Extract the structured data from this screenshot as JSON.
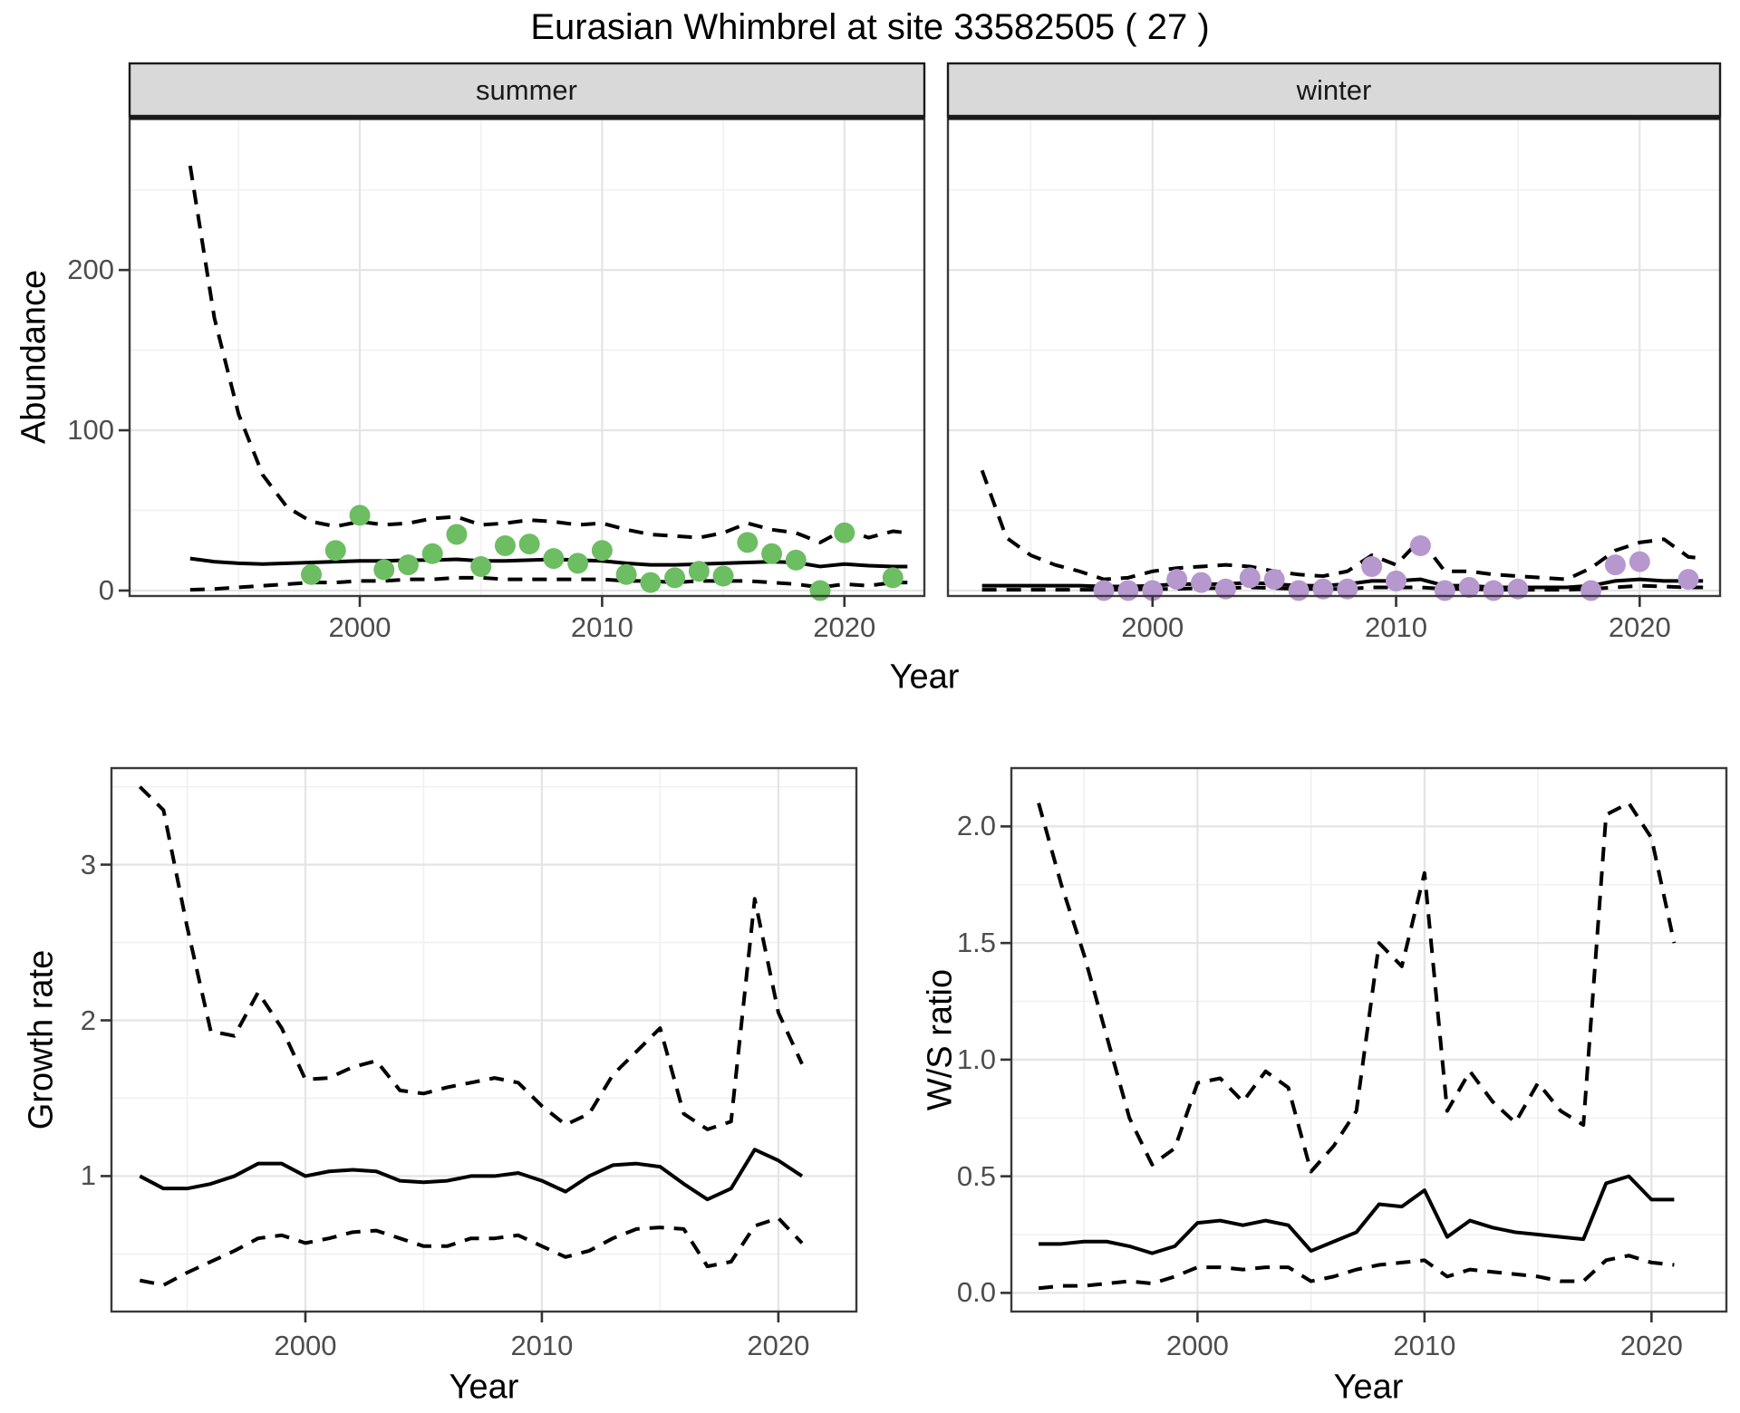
{
  "title": "Eurasian Whimbrel at site 33582505 ( 27 )",
  "top_row": {
    "ylabel": "Abundance",
    "xlabel": "Year",
    "facet_labels": [
      "summer",
      "winter"
    ]
  },
  "bottom_row": {
    "left_ylabel": "Growth rate",
    "left_xlabel": "Year",
    "right_ylabel": "W/S ratio",
    "right_xlabel": "Year"
  },
  "colors": {
    "summer_point": "#6dbd63",
    "winter_point": "#b697ce",
    "line": "#000000",
    "strip_bg": "#d9d9d9",
    "strip_border": "#1a1a1a",
    "panel_border": "#3a3a3a",
    "grid_major": "#e4e4e4",
    "grid_minor": "#f0f0f0",
    "tick_text": "#4d4d4d",
    "panel_bg": "#ffffff"
  },
  "chart_data": [
    {
      "id": "abundance_summer",
      "type": "scatter",
      "facet_label": "summer",
      "ylabel": "Abundance",
      "xlabel": "Year",
      "grid": true,
      "legend": "none",
      "xlim": [
        1990.5,
        2023.3
      ],
      "ylim": [
        -3.4,
        295
      ],
      "x_ticks": [
        2000,
        2010,
        2020
      ],
      "x_tick_labels": [
        "2000",
        "2010",
        "2020"
      ],
      "x_minor": [
        1995,
        2005,
        2015
      ],
      "y_ticks": [
        0,
        100,
        200
      ],
      "y_tick_labels": [
        "0",
        "100",
        "200"
      ],
      "y_minor": [
        50,
        150,
        250
      ],
      "line_x": [
        1993,
        1994,
        1995,
        1996,
        1997,
        1998,
        1999,
        2000,
        2001,
        2002,
        2003,
        2004,
        2005,
        2006,
        2007,
        2008,
        2009,
        2010,
        2011,
        2012,
        2013,
        2014,
        2015,
        2016,
        2017,
        2018,
        2019,
        2020,
        2021,
        2022,
        2022.6
      ],
      "series": [
        {
          "name": "median",
          "style": "solid",
          "values": [
            20,
            18,
            17,
            16.5,
            17,
            17.5,
            18,
            18.5,
            18.5,
            19,
            19,
            19.5,
            18.5,
            18.5,
            19,
            19.5,
            19,
            18.5,
            17,
            16,
            16,
            16.5,
            17,
            17.5,
            18,
            17.5,
            15,
            16.5,
            15.5,
            15,
            15
          ]
        },
        {
          "name": "upper95",
          "style": "dashed",
          "values": [
            265,
            170,
            110,
            72,
            52,
            43,
            40,
            43,
            41,
            42,
            45,
            46,
            41,
            42,
            44,
            43,
            41,
            42,
            38,
            35,
            34,
            33,
            36,
            42,
            38,
            36,
            30,
            38,
            33,
            37,
            36
          ]
        },
        {
          "name": "lower95",
          "style": "dashed",
          "values": [
            0.5,
            1,
            2,
            3,
            4,
            5,
            5,
            6,
            6,
            7,
            7,
            8,
            8,
            7,
            7,
            7,
            7,
            7,
            6,
            6,
            5,
            6,
            6,
            6,
            5,
            4,
            2,
            4,
            3,
            5,
            5
          ]
        }
      ],
      "points": [
        [
          1998,
          10
        ],
        [
          1999,
          25
        ],
        [
          2000,
          47
        ],
        [
          2001,
          13
        ],
        [
          2002,
          16
        ],
        [
          2003,
          23
        ],
        [
          2004,
          35
        ],
        [
          2005,
          15
        ],
        [
          2006,
          28
        ],
        [
          2007,
          29
        ],
        [
          2008,
          20
        ],
        [
          2009,
          17
        ],
        [
          2010,
          25
        ],
        [
          2011,
          10
        ],
        [
          2012,
          5
        ],
        [
          2013,
          8
        ],
        [
          2014,
          12
        ],
        [
          2015,
          9
        ],
        [
          2016,
          30
        ],
        [
          2017,
          23
        ],
        [
          2018,
          19
        ],
        [
          2019,
          0
        ],
        [
          2020,
          36
        ],
        [
          2022,
          8
        ]
      ],
      "point_color": "#6dbd63"
    },
    {
      "id": "abundance_winter",
      "type": "scatter",
      "facet_label": "winter",
      "ylabel": "Abundance",
      "xlabel": "Year",
      "grid": true,
      "legend": "none",
      "xlim": [
        1991.6,
        2023.3
      ],
      "ylim": [
        -3.4,
        295
      ],
      "x_ticks": [
        2000,
        2010,
        2020
      ],
      "x_tick_labels": [
        "2000",
        "2010",
        "2020"
      ],
      "x_minor": [
        1995,
        2005,
        2015
      ],
      "y_ticks": [
        0,
        100,
        200
      ],
      "y_tick_labels": [
        "0",
        "100",
        "200"
      ],
      "y_minor": [
        50,
        150,
        250
      ],
      "line_x": [
        1993,
        1994,
        1995,
        1996,
        1997,
        1998,
        1999,
        2000,
        2001,
        2002,
        2003,
        2004,
        2005,
        2006,
        2007,
        2008,
        2009,
        2010,
        2011,
        2012,
        2013,
        2014,
        2015,
        2016,
        2017,
        2018,
        2019,
        2020,
        2021,
        2022,
        2022.6
      ],
      "series": [
        {
          "name": "median",
          "style": "solid",
          "values": [
            3,
            3,
            3,
            3,
            3,
            2.5,
            2.5,
            3,
            4,
            4,
            4,
            5,
            4,
            3,
            3,
            4,
            6,
            6,
            7,
            3,
            3,
            2,
            2,
            2,
            2,
            3,
            6,
            7,
            6,
            6,
            6
          ]
        },
        {
          "name": "upper95",
          "style": "dashed",
          "values": [
            75,
            33,
            22,
            16,
            12,
            7,
            8,
            12,
            14,
            15,
            16,
            15,
            12,
            10,
            9,
            12,
            22,
            16,
            32,
            12,
            12,
            10,
            9,
            8,
            7,
            14,
            25,
            30,
            32,
            21,
            20
          ]
        },
        {
          "name": "lower95",
          "style": "dashed",
          "values": [
            0.5,
            0.5,
            0.5,
            0.5,
            0.5,
            0.5,
            0.5,
            1,
            1,
            1.5,
            1.5,
            2,
            1.5,
            1,
            1,
            1,
            2,
            2,
            2,
            1,
            1,
            0.5,
            0.5,
            0.5,
            0.5,
            1,
            2,
            3,
            2.5,
            2,
            2
          ]
        }
      ],
      "points": [
        [
          1998,
          0
        ],
        [
          1999,
          0
        ],
        [
          2000,
          0
        ],
        [
          2001,
          7
        ],
        [
          2002,
          5
        ],
        [
          2003,
          1
        ],
        [
          2004,
          8
        ],
        [
          2005,
          7
        ],
        [
          2006,
          0
        ],
        [
          2007,
          1
        ],
        [
          2008,
          1
        ],
        [
          2009,
          15
        ],
        [
          2010,
          6
        ],
        [
          2011,
          28
        ],
        [
          2012,
          0
        ],
        [
          2013,
          2
        ],
        [
          2014,
          0
        ],
        [
          2015,
          1
        ],
        [
          2018,
          0
        ],
        [
          2019,
          16
        ],
        [
          2020,
          18
        ],
        [
          2022,
          7
        ]
      ],
      "point_color": "#b697ce"
    },
    {
      "id": "growth_rate",
      "type": "line",
      "ylabel": "Growth rate",
      "xlabel": "Year",
      "grid": true,
      "legend": "none",
      "xlim": [
        1991.8,
        2023.3
      ],
      "ylim": [
        0.13,
        3.62
      ],
      "x_ticks": [
        2000,
        2010,
        2020
      ],
      "x_tick_labels": [
        "2000",
        "2010",
        "2020"
      ],
      "x_minor": [
        1995,
        2005,
        2015
      ],
      "y_ticks": [
        1,
        2,
        3
      ],
      "y_tick_labels": [
        "1",
        "2",
        "3"
      ],
      "y_minor": [
        0.5,
        1.5,
        2.5,
        3.5
      ],
      "line_x": [
        1993,
        1994,
        1995,
        1996,
        1997,
        1998,
        1999,
        2000,
        2001,
        2002,
        2003,
        2004,
        2005,
        2006,
        2007,
        2008,
        2009,
        2010,
        2011,
        2012,
        2013,
        2014,
        2015,
        2016,
        2017,
        2018,
        2019,
        2020,
        2021
      ],
      "series": [
        {
          "name": "median",
          "style": "solid",
          "values": [
            1.0,
            0.92,
            0.92,
            0.95,
            1.0,
            1.08,
            1.08,
            1.0,
            1.03,
            1.04,
            1.03,
            0.97,
            0.96,
            0.97,
            1.0,
            1.0,
            1.02,
            0.97,
            0.9,
            1.0,
            1.07,
            1.08,
            1.06,
            0.95,
            0.85,
            0.92,
            1.17,
            1.1,
            1.0
          ]
        },
        {
          "name": "upper95",
          "style": "dashed",
          "values": [
            3.5,
            3.35,
            2.6,
            1.93,
            1.9,
            2.18,
            1.95,
            1.62,
            1.63,
            1.7,
            1.74,
            1.55,
            1.53,
            1.57,
            1.6,
            1.63,
            1.6,
            1.45,
            1.33,
            1.4,
            1.65,
            1.8,
            1.95,
            1.4,
            1.3,
            1.35,
            2.78,
            2.05,
            1.72
          ]
        },
        {
          "name": "lower95",
          "style": "dashed",
          "values": [
            0.33,
            0.3,
            0.38,
            0.45,
            0.52,
            0.6,
            0.62,
            0.57,
            0.6,
            0.64,
            0.65,
            0.6,
            0.55,
            0.55,
            0.6,
            0.6,
            0.62,
            0.55,
            0.48,
            0.52,
            0.6,
            0.66,
            0.67,
            0.66,
            0.42,
            0.45,
            0.68,
            0.73,
            0.57
          ]
        }
      ],
      "points": [],
      "point_color": "#000000"
    },
    {
      "id": "ws_ratio",
      "type": "line",
      "ylabel": "W/S ratio",
      "xlabel": "Year",
      "grid": true,
      "legend": "none",
      "xlim": [
        1991.8,
        2023.3
      ],
      "ylim": [
        -0.08,
        2.25
      ],
      "x_ticks": [
        2000,
        2010,
        2020
      ],
      "x_tick_labels": [
        "2000",
        "2010",
        "2020"
      ],
      "x_minor": [
        1995,
        2005,
        2015
      ],
      "y_ticks": [
        0.0,
        0.5,
        1.0,
        1.5,
        2.0
      ],
      "y_tick_labels": [
        "0.0",
        "0.5",
        "1.0",
        "1.5",
        "2.0"
      ],
      "y_minor": [
        0.25,
        0.75,
        1.25,
        1.75,
        2.25
      ],
      "line_x": [
        1993,
        1994,
        1995,
        1996,
        1997,
        1998,
        1999,
        2000,
        2001,
        2002,
        2003,
        2004,
        2005,
        2006,
        2007,
        2008,
        2009,
        2010,
        2011,
        2012,
        2013,
        2014,
        2015,
        2016,
        2017,
        2018,
        2019,
        2020,
        2021
      ],
      "series": [
        {
          "name": "median",
          "style": "solid",
          "values": [
            0.21,
            0.21,
            0.22,
            0.22,
            0.2,
            0.17,
            0.2,
            0.3,
            0.31,
            0.29,
            0.31,
            0.29,
            0.18,
            0.22,
            0.26,
            0.38,
            0.37,
            0.44,
            0.24,
            0.31,
            0.28,
            0.26,
            0.25,
            0.24,
            0.23,
            0.47,
            0.5,
            0.4,
            0.4
          ]
        },
        {
          "name": "upper95",
          "style": "dashed",
          "values": [
            2.1,
            1.75,
            1.45,
            1.1,
            0.75,
            0.55,
            0.62,
            0.9,
            0.92,
            0.82,
            0.95,
            0.88,
            0.52,
            0.63,
            0.78,
            1.5,
            1.4,
            1.8,
            0.78,
            0.95,
            0.82,
            0.73,
            0.9,
            0.78,
            0.72,
            2.05,
            2.1,
            1.95,
            1.5
          ]
        },
        {
          "name": "lower95",
          "style": "dashed",
          "values": [
            0.02,
            0.03,
            0.03,
            0.04,
            0.05,
            0.04,
            0.07,
            0.11,
            0.11,
            0.1,
            0.11,
            0.11,
            0.05,
            0.07,
            0.1,
            0.12,
            0.13,
            0.14,
            0.07,
            0.1,
            0.09,
            0.08,
            0.07,
            0.05,
            0.05,
            0.14,
            0.16,
            0.13,
            0.12
          ]
        }
      ],
      "points": [],
      "point_color": "#000000"
    }
  ]
}
